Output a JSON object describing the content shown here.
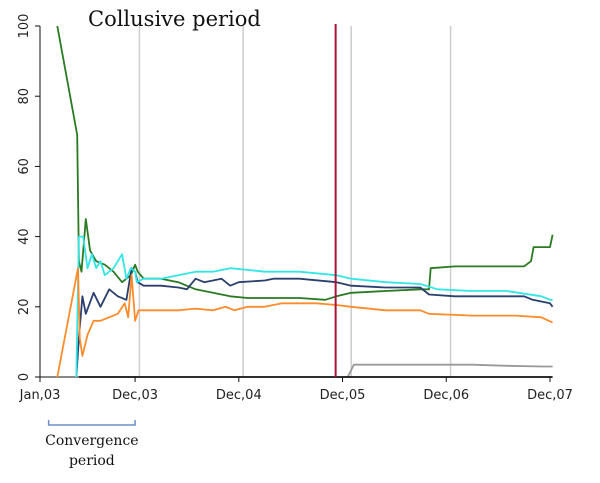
{
  "chart_data": {
    "type": "line",
    "title": "Collusive period",
    "xlabel": "",
    "ylabel": "",
    "ylim": [
      0,
      100
    ],
    "yticks": [
      0,
      20,
      40,
      60,
      80,
      100
    ],
    "xticks": [
      {
        "label": "Jan,03",
        "t": 0
      },
      {
        "label": "Dec,03",
        "t": 11
      },
      {
        "label": "Dec,04",
        "t": 23
      },
      {
        "label": "Dec,05",
        "t": 35
      },
      {
        "label": "Dec,06",
        "t": 47
      },
      {
        "label": "Dec,07",
        "t": 59
      }
    ],
    "x_unit": "months since Jan,03",
    "xlim": [
      0,
      59
    ],
    "grid": "vertical",
    "gridlines_t": [
      11.5,
      23.5,
      36,
      47.5
    ],
    "event_line": {
      "t": 34.2,
      "color": "#a5163a"
    },
    "annotation": {
      "text": [
        "Convergence",
        "period"
      ],
      "range_t": [
        1,
        11
      ]
    },
    "series": [
      {
        "color": "#2a7a22",
        "points": [
          [
            2,
            100
          ],
          [
            4.3,
            69
          ],
          [
            4.5,
            33
          ],
          [
            4.8,
            30
          ],
          [
            5.3,
            45
          ],
          [
            5.8,
            36
          ],
          [
            6.5,
            33
          ],
          [
            7.5,
            32
          ],
          [
            8.5,
            30
          ],
          [
            9.5,
            27
          ],
          [
            10.5,
            29
          ],
          [
            11,
            32
          ],
          [
            11.3,
            30
          ],
          [
            12,
            28
          ],
          [
            14,
            28
          ],
          [
            16,
            27
          ],
          [
            18,
            25
          ],
          [
            20,
            24
          ],
          [
            22,
            23
          ],
          [
            24,
            22.5
          ],
          [
            27,
            22.5
          ],
          [
            30,
            22.5
          ],
          [
            33,
            22
          ],
          [
            34.3,
            23
          ],
          [
            36,
            24
          ],
          [
            40,
            24.5
          ],
          [
            44,
            25
          ],
          [
            45,
            25
          ],
          [
            45.2,
            31
          ],
          [
            48,
            31.5
          ],
          [
            52,
            31.5
          ],
          [
            56,
            31.5
          ],
          [
            56.8,
            33
          ],
          [
            57.1,
            37
          ],
          [
            59,
            37
          ],
          [
            59.3,
            40.5
          ]
        ]
      },
      {
        "color": "#2a3f6e",
        "points": [
          [
            4.2,
            0
          ],
          [
            4.5,
            11
          ],
          [
            4.9,
            23
          ],
          [
            5.3,
            18
          ],
          [
            6.2,
            24
          ],
          [
            7,
            20
          ],
          [
            8,
            25
          ],
          [
            9,
            23
          ],
          [
            10,
            22
          ],
          [
            10.6,
            31
          ],
          [
            11,
            30
          ],
          [
            11.3,
            27
          ],
          [
            12,
            26
          ],
          [
            14,
            26
          ],
          [
            16,
            25.5
          ],
          [
            17,
            25
          ],
          [
            18,
            28
          ],
          [
            19,
            27
          ],
          [
            21,
            28
          ],
          [
            22,
            26
          ],
          [
            23,
            27
          ],
          [
            26,
            27.5
          ],
          [
            27,
            28
          ],
          [
            30,
            28
          ],
          [
            34.3,
            27
          ],
          [
            36,
            26
          ],
          [
            40,
            25.5
          ],
          [
            44,
            25.5
          ],
          [
            45,
            23.5
          ],
          [
            48,
            23
          ],
          [
            52,
            23
          ],
          [
            56,
            23
          ],
          [
            57,
            22
          ],
          [
            59,
            21
          ],
          [
            59.3,
            20
          ]
        ]
      },
      {
        "color": "#33e6e6",
        "points": [
          [
            4.2,
            0
          ],
          [
            4.5,
            40
          ],
          [
            5,
            40
          ],
          [
            5.5,
            31
          ],
          [
            6,
            35
          ],
          [
            6.5,
            31
          ],
          [
            7,
            33
          ],
          [
            7.5,
            29
          ],
          [
            8.5,
            31
          ],
          [
            9,
            33
          ],
          [
            9.5,
            35
          ],
          [
            10,
            28
          ],
          [
            10.5,
            31
          ],
          [
            11,
            30
          ],
          [
            11.2,
            27
          ],
          [
            12,
            28
          ],
          [
            14,
            28
          ],
          [
            16,
            29
          ],
          [
            18,
            30
          ],
          [
            20,
            30
          ],
          [
            22,
            31
          ],
          [
            24,
            30.5
          ],
          [
            26,
            30
          ],
          [
            28,
            30
          ],
          [
            30,
            30
          ],
          [
            34.3,
            29
          ],
          [
            36,
            28
          ],
          [
            40,
            27
          ],
          [
            44,
            26.5
          ],
          [
            46,
            25
          ],
          [
            50,
            24.5
          ],
          [
            54,
            24.5
          ],
          [
            58,
            23
          ],
          [
            59,
            22
          ],
          [
            59.3,
            22
          ]
        ]
      },
      {
        "color": "#ff8c2a",
        "points": [
          [
            2,
            0
          ],
          [
            4.4,
            31
          ],
          [
            4.6,
            11
          ],
          [
            4.9,
            6
          ],
          [
            5.5,
            12
          ],
          [
            6.2,
            16
          ],
          [
            7,
            16
          ],
          [
            8,
            17
          ],
          [
            9,
            18
          ],
          [
            9.8,
            21
          ],
          [
            10.2,
            17
          ],
          [
            10.6,
            29
          ],
          [
            11,
            16
          ],
          [
            11.4,
            19
          ],
          [
            14,
            19
          ],
          [
            16,
            19
          ],
          [
            18,
            19.5
          ],
          [
            20,
            19
          ],
          [
            21.5,
            20
          ],
          [
            22.5,
            19
          ],
          [
            24,
            20
          ],
          [
            26,
            20
          ],
          [
            28,
            21
          ],
          [
            30,
            21
          ],
          [
            32,
            21
          ],
          [
            34.3,
            20.5
          ],
          [
            36,
            20
          ],
          [
            40,
            19
          ],
          [
            44,
            19
          ],
          [
            45,
            18
          ],
          [
            50,
            17.5
          ],
          [
            55,
            17.5
          ],
          [
            58,
            17
          ],
          [
            59.3,
            15.5
          ]
        ]
      },
      {
        "color": "#999999",
        "points": [
          [
            35.6,
            0
          ],
          [
            36,
            2
          ],
          [
            36.3,
            3.5
          ],
          [
            38,
            3.5
          ],
          [
            42,
            3.5
          ],
          [
            46,
            3.5
          ],
          [
            50,
            3.5
          ],
          [
            54,
            3.2
          ],
          [
            58,
            3
          ],
          [
            59.3,
            3
          ]
        ]
      },
      {
        "color": "#111111",
        "points": [
          [
            4.5,
            0
          ],
          [
            59.3,
            0
          ]
        ]
      }
    ]
  }
}
